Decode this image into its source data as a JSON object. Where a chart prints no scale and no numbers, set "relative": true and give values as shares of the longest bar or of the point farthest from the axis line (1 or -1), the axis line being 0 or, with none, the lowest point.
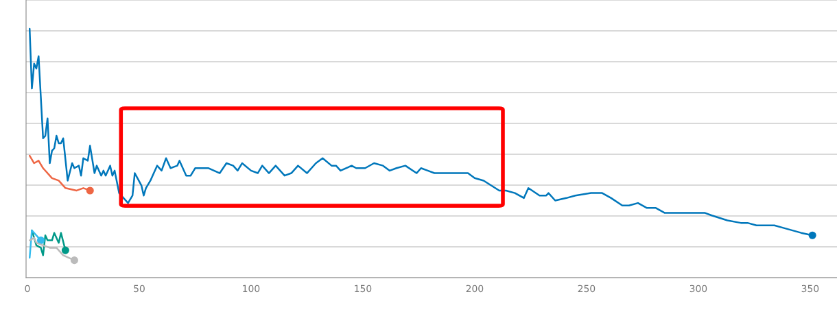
{
  "chart_data": {
    "type": "line",
    "relative": true,
    "xlim": [
      -0.6,
      362
    ],
    "xticks": [
      0,
      50,
      100,
      150,
      200,
      250,
      300,
      350
    ],
    "grid": "y",
    "tick_labels": "x",
    "line_style": "solid",
    "series": [
      {
        "color": "#0077bb",
        "x": [
          1,
          2,
          3,
          4,
          5,
          7,
          8,
          9,
          10,
          11,
          12,
          13,
          14,
          15,
          16,
          18,
          20,
          21,
          23,
          24,
          25,
          27,
          28,
          30,
          31,
          33,
          34,
          35,
          37,
          38,
          39,
          41,
          45,
          47,
          48,
          51,
          52,
          53,
          55,
          58,
          60,
          62,
          64,
          67,
          68,
          71,
          73,
          75,
          79,
          81,
          86,
          89,
          92,
          94,
          96,
          100,
          103,
          105,
          108,
          111,
          115,
          118,
          121,
          125,
          129,
          132,
          136,
          138,
          140,
          145,
          147,
          151,
          155,
          159,
          162,
          165,
          169,
          174,
          176,
          179,
          182,
          187,
          191,
          197,
          200,
          204,
          211,
          214,
          218,
          222,
          224,
          229,
          232,
          233,
          236,
          241,
          245,
          252,
          257,
          261,
          266,
          269,
          273,
          277,
          281,
          285,
          290,
          294,
          299,
          303,
          306,
          313,
          319,
          322,
          326,
          334,
          338,
          346,
          351
        ],
        "values": [
          1.0,
          0.76,
          0.86,
          0.84,
          0.89,
          0.56,
          0.57,
          0.64,
          0.46,
          0.51,
          0.52,
          0.57,
          0.54,
          0.54,
          0.56,
          0.39,
          0.46,
          0.44,
          0.45,
          0.41,
          0.48,
          0.47,
          0.53,
          0.42,
          0.45,
          0.41,
          0.43,
          0.41,
          0.45,
          0.41,
          0.43,
          0.34,
          0.3,
          0.33,
          0.42,
          0.37,
          0.33,
          0.36,
          0.39,
          0.45,
          0.43,
          0.48,
          0.44,
          0.45,
          0.47,
          0.41,
          0.41,
          0.44,
          0.44,
          0.44,
          0.42,
          0.46,
          0.45,
          0.43,
          0.46,
          0.43,
          0.42,
          0.45,
          0.42,
          0.45,
          0.41,
          0.42,
          0.45,
          0.42,
          0.46,
          0.48,
          0.45,
          0.45,
          0.43,
          0.45,
          0.44,
          0.44,
          0.46,
          0.45,
          0.43,
          0.44,
          0.45,
          0.42,
          0.44,
          0.43,
          0.42,
          0.42,
          0.42,
          0.42,
          0.4,
          0.39,
          0.35,
          0.35,
          0.34,
          0.32,
          0.36,
          0.33,
          0.33,
          0.34,
          0.31,
          0.32,
          0.33,
          0.34,
          0.34,
          0.32,
          0.29,
          0.29,
          0.3,
          0.28,
          0.28,
          0.26,
          0.26,
          0.26,
          0.26,
          0.26,
          0.25,
          0.23,
          0.22,
          0.22,
          0.21,
          0.21,
          0.2,
          0.18,
          0.17
        ]
      },
      {
        "color": "#ee6644",
        "x": [
          1,
          3,
          5,
          7,
          11,
          14,
          17,
          22,
          25,
          28
        ],
        "values": [
          0.49,
          0.46,
          0.47,
          0.44,
          0.4,
          0.39,
          0.36,
          0.35,
          0.36,
          0.35
        ]
      },
      {
        "color": "#009988",
        "x": [
          2,
          4,
          6,
          7,
          8,
          9,
          11,
          12,
          14,
          15,
          17
        ],
        "values": [
          0.19,
          0.13,
          0.12,
          0.09,
          0.17,
          0.15,
          0.15,
          0.18,
          0.14,
          0.18,
          0.11
        ]
      },
      {
        "color": "#33bbee",
        "x": [
          1,
          2,
          6
        ],
        "values": [
          0.08,
          0.19,
          0.15
        ]
      },
      {
        "color": "#bbbbbb",
        "x": [
          1,
          3,
          4,
          7,
          10,
          13,
          16,
          21
        ],
        "values": [
          0.15,
          0.16,
          0.14,
          0.13,
          0.12,
          0.12,
          0.09,
          0.07
        ]
      }
    ]
  }
}
